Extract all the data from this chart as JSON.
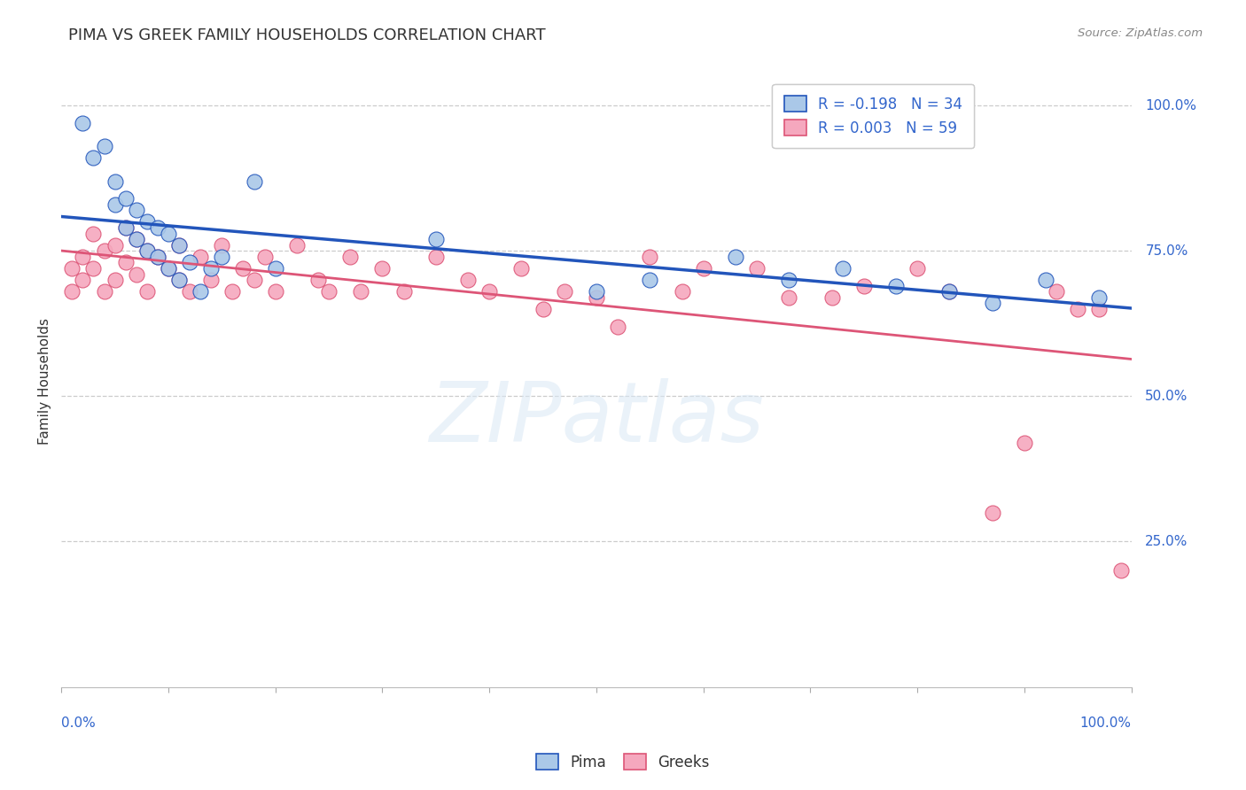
{
  "title": "PIMA VS GREEK FAMILY HOUSEHOLDS CORRELATION CHART",
  "source": "Source: ZipAtlas.com",
  "ylabel": "Family Households",
  "pima_color": "#aac8e8",
  "greeks_color": "#f5a8be",
  "pima_line_color": "#2255bb",
  "greeks_line_color": "#dd5577",
  "pima_R": -0.198,
  "pima_N": 34,
  "greeks_R": 0.003,
  "greeks_N": 59,
  "watermark": "ZIPatlas",
  "ytick_positions": [
    0,
    25,
    50,
    75,
    100
  ],
  "ytick_labels": [
    "",
    "25.0%",
    "50.0%",
    "75.0%",
    "100.0%"
  ],
  "pima_x": [
    2,
    3,
    4,
    5,
    5,
    6,
    6,
    7,
    7,
    8,
    8,
    9,
    9,
    10,
    10,
    11,
    11,
    12,
    13,
    14,
    15,
    18,
    20,
    35,
    50,
    55,
    63,
    68,
    73,
    78,
    83,
    87,
    92,
    97
  ],
  "pima_y": [
    97,
    91,
    93,
    87,
    83,
    84,
    79,
    82,
    77,
    80,
    75,
    79,
    74,
    78,
    72,
    76,
    70,
    73,
    68,
    72,
    74,
    87,
    72,
    77,
    68,
    70,
    74,
    70,
    72,
    69,
    68,
    66,
    70,
    67
  ],
  "greeks_x": [
    1,
    1,
    2,
    2,
    3,
    3,
    4,
    4,
    5,
    5,
    6,
    6,
    7,
    7,
    8,
    8,
    9,
    10,
    11,
    11,
    12,
    13,
    14,
    15,
    16,
    17,
    18,
    19,
    20,
    22,
    24,
    25,
    27,
    28,
    30,
    32,
    35,
    38,
    40,
    43,
    45,
    47,
    50,
    52,
    55,
    58,
    60,
    65,
    68,
    72,
    75,
    80,
    83,
    87,
    90,
    93,
    95,
    97,
    99
  ],
  "greeks_y": [
    72,
    68,
    74,
    70,
    78,
    72,
    75,
    68,
    76,
    70,
    79,
    73,
    77,
    71,
    75,
    68,
    74,
    72,
    70,
    76,
    68,
    74,
    70,
    76,
    68,
    72,
    70,
    74,
    68,
    76,
    70,
    68,
    74,
    68,
    72,
    68,
    74,
    70,
    68,
    72,
    65,
    68,
    67,
    62,
    74,
    68,
    72,
    72,
    67,
    67,
    69,
    72,
    68,
    30,
    42,
    68,
    65,
    65,
    20
  ]
}
